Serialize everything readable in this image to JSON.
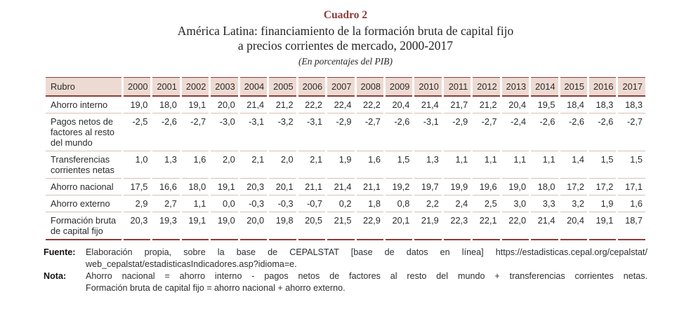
{
  "caption": {
    "label": "Cuadro 2",
    "title_line1": "América Latina: financiamiento de la formación bruta de capital fijo",
    "title_line2": "a precios corrientes de mercado, 2000-2017",
    "unit_note": "(En porcentajes del PIB)"
  },
  "chart_data": {
    "type": "table",
    "title": "América Latina: financiamiento de la formación bruta de capital fijo a precios corrientes de mercado, 2000-2017",
    "unit": "En porcentajes del PIB",
    "columns": [
      "Rubro",
      "2000",
      "2001",
      "2002",
      "2003",
      "2004",
      "2005",
      "2006",
      "2007",
      "2008",
      "2009",
      "2010",
      "2011",
      "2012",
      "2013",
      "2014",
      "2015",
      "2016",
      "2017"
    ],
    "rows": [
      {
        "label": "Ahorro interno",
        "values": [
          "19,0",
          "18,0",
          "19,1",
          "20,0",
          "21,4",
          "21,2",
          "22,2",
          "22,4",
          "22,2",
          "20,4",
          "21,4",
          "21,7",
          "21,2",
          "20,4",
          "19,5",
          "18,4",
          "18,3",
          "18,3"
        ]
      },
      {
        "label": "Pagos netos de factores al resto del mundo",
        "values": [
          "-2,5",
          "-2,6",
          "-2,7",
          "-3,0",
          "-3,1",
          "-3,2",
          "-3,1",
          "-2,9",
          "-2,7",
          "-2,6",
          "-3,1",
          "-2,9",
          "-2,7",
          "-2,4",
          "-2,6",
          "-2,6",
          "-2,6",
          "-2,7"
        ]
      },
      {
        "label": "Transferencias corrientes netas",
        "values": [
          "1,0",
          "1,3",
          "1,6",
          "2,0",
          "2,1",
          "2,0",
          "2,1",
          "1,9",
          "1,6",
          "1,5",
          "1,3",
          "1,1",
          "1,1",
          "1,1",
          "1,1",
          "1,4",
          "1,5",
          "1,5"
        ]
      },
      {
        "label": "Ahorro nacional",
        "values": [
          "17,5",
          "16,6",
          "18,0",
          "19,1",
          "20,3",
          "20,1",
          "21,1",
          "21,4",
          "21,1",
          "19,2",
          "19,7",
          "19,9",
          "19,6",
          "19,0",
          "18,0",
          "17,2",
          "17,2",
          "17,1"
        ]
      },
      {
        "label": "Ahorro externo",
        "values": [
          "2,9",
          "2,7",
          "1,1",
          "0,0",
          "-0,3",
          "-0,3",
          "-0,7",
          "0,2",
          "1,8",
          "0,8",
          "2,2",
          "2,4",
          "2,5",
          "3,0",
          "3,3",
          "3,2",
          "1,9",
          "1,6"
        ]
      },
      {
        "label": "Formación bruta de capital fijo",
        "values": [
          "20,3",
          "19,3",
          "19,1",
          "19,0",
          "20,0",
          "19,8",
          "20,5",
          "21,5",
          "22,9",
          "20,1",
          "21,9",
          "22,3",
          "22,1",
          "22,0",
          "21,4",
          "20,4",
          "19,1",
          "18,7"
        ]
      }
    ]
  },
  "footnotes": {
    "source": {
      "label": "Fuente:",
      "lines": [
        "Elaboración propia, sobre la base de CEPALSTAT [base de datos en línea] https://estadisticas.cepal.org/cepalstat/",
        "web_cepalstat/estadisticasIndicadores.asp?idioma=e."
      ]
    },
    "note": {
      "label": "Nota:",
      "lines": [
        "Ahorro nacional = ahorro interno - pagos netos de factores al resto del mundo + transferencias corrientes netas.",
        "Formación bruta de capital fijo = ahorro nacional + ahorro externo."
      ]
    }
  },
  "colors": {
    "title_maroon": "#8b3a3a",
    "header_bg": "#eddad2",
    "dark_border": "#8f3b38",
    "light_separator": "#d8beb4"
  }
}
